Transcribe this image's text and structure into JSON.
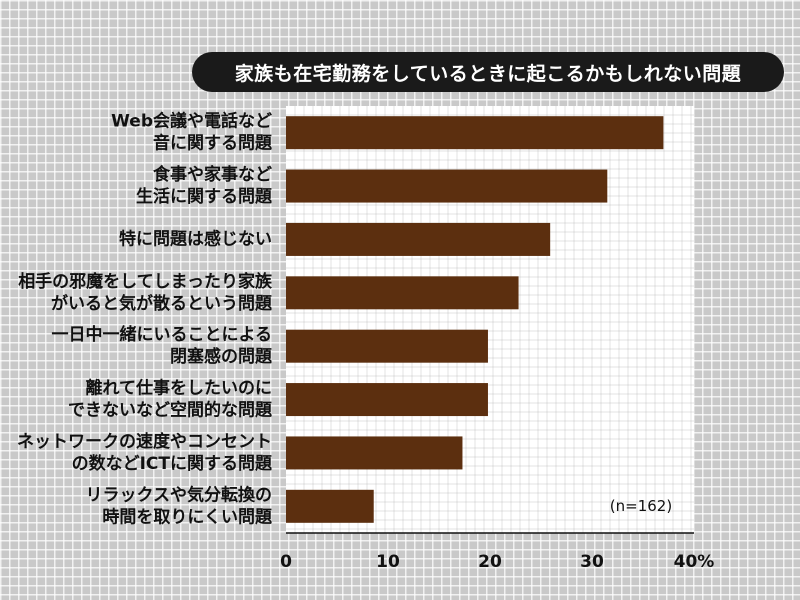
{
  "chart_data": {
    "type": "bar",
    "orientation": "horizontal",
    "title": "家族も在宅勤務をしているときに起こるかもしれない問題",
    "categories": [
      [
        "Web会議や電話など",
        "音に関する問題"
      ],
      [
        "食事や家事など",
        "生活に関する問題"
      ],
      [
        "特に問題は感じない"
      ],
      [
        "相手の邪魔をしてしまったり家族",
        "がいると気が散るという問題"
      ],
      [
        "一日中一緒にいることによる",
        "閉塞感の問題"
      ],
      [
        "離れて仕事をしたいのに",
        "できないなど空間的な問題"
      ],
      [
        "ネットワークの速度やコンセント",
        "の数などICTに関する問題"
      ],
      [
        "リラックスや気分転換の",
        "時間を取りにくい問題"
      ]
    ],
    "values": [
      37,
      31.5,
      25.9,
      22.8,
      19.8,
      19.8,
      17.3,
      8.6
    ],
    "x_ticks": [
      "0",
      "10",
      "20",
      "30",
      "40%"
    ],
    "xlim": [
      0,
      40
    ],
    "annotation": "(n=162)",
    "grid": true,
    "colors": {
      "bar": "#5c2f0f",
      "plot_bg": "#ffffff",
      "grid": "#9a9a9a",
      "title_bg": "#1a1a1a"
    }
  }
}
